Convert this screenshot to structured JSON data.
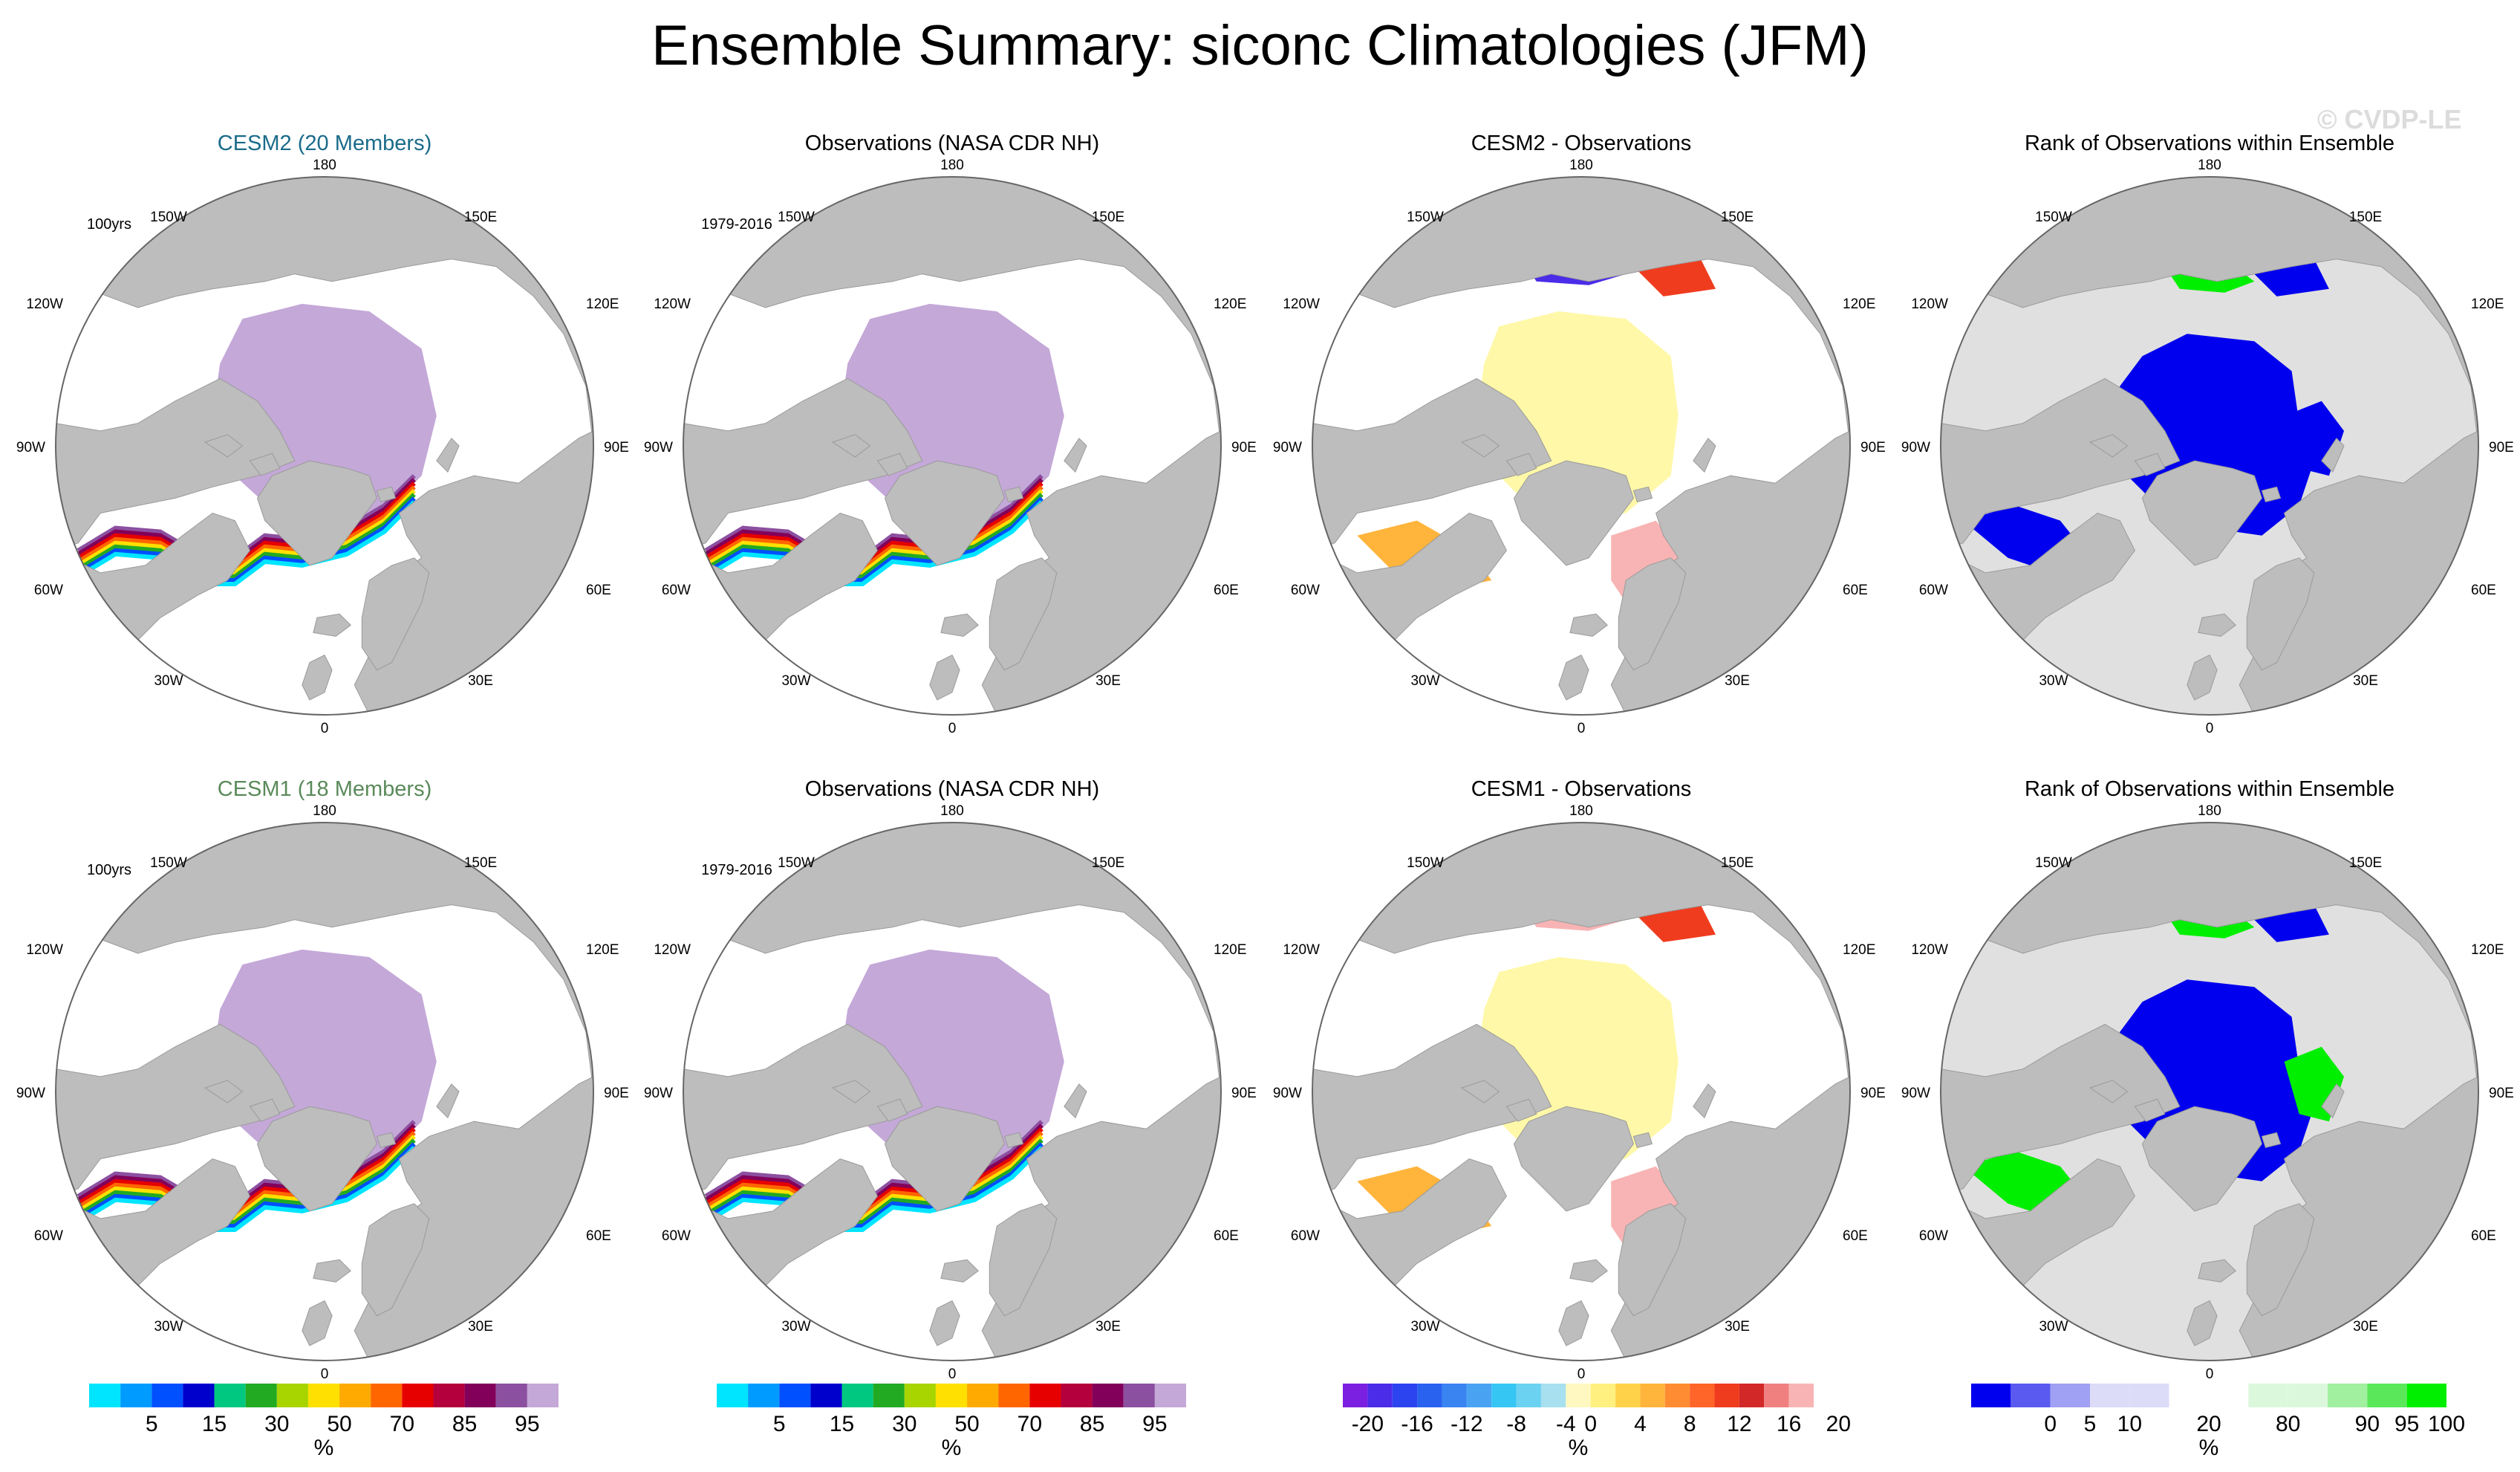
{
  "title": "Ensemble Summary: siconc Climatologies (JFM)",
  "watermark": "© CVDP-LE",
  "colors": {
    "land": "#bdbdbd",
    "pole_ice": "#c4a8d8",
    "pack_ice": "#8a4fa8",
    "diff_ice_bias": "#fff8a8",
    "rank_low": "#0000ee",
    "rank_high": "#00ee00",
    "rank_bg": "#e0e0e0"
  },
  "map_labels": {
    "lon_top": "180",
    "lon_bottom": "0",
    "lon_150w": "150W",
    "lon_150e": "150E",
    "lon_120w": "120W",
    "lon_120e": "120E",
    "lon_90w": "90W",
    "lon_90e": "90E",
    "lon_60w": "60W",
    "lon_60e": "60E",
    "lon_30w": "30W",
    "lon_30e": "30E"
  },
  "panels": [
    {
      "title": "CESM2 (20 Members)",
      "title_color": "#1a6b8a",
      "subtitle": "100yrs",
      "kind": "ensemble"
    },
    {
      "title": "Observations (NASA CDR NH)",
      "title_color": "#000000",
      "subtitle": "1979-2016",
      "kind": "obs"
    },
    {
      "title": "CESM2 - Observations",
      "title_color": "#000000",
      "subtitle": "",
      "kind": "diff"
    },
    {
      "title": "Rank of Observations within Ensemble",
      "title_color": "#000000",
      "subtitle": "",
      "kind": "rank"
    },
    {
      "title": "CESM1 (18 Members)",
      "title_color": "#5a8a5a",
      "subtitle": "100yrs",
      "kind": "ensemble"
    },
    {
      "title": "Observations (NASA CDR NH)",
      "title_color": "#000000",
      "subtitle": "1979-2016",
      "kind": "obs"
    },
    {
      "title": "CESM1 - Observations",
      "title_color": "#000000",
      "subtitle": "",
      "kind": "diff"
    },
    {
      "title": "Rank of Observations within Ensemble",
      "title_color": "#000000",
      "subtitle": "",
      "kind": "rank"
    }
  ],
  "colorbars": [
    {
      "unit": "%",
      "colors": [
        "#00e5ff",
        "#009bff",
        "#0050ff",
        "#0000cc",
        "#00c880",
        "#22aa22",
        "#a8d400",
        "#ffe000",
        "#ffaa00",
        "#ff6600",
        "#e60000",
        "#b4003c",
        "#82005a",
        "#8c50a0",
        "#c4a8d8"
      ],
      "tick_labels": [
        "5",
        "15",
        "30",
        "50",
        "70",
        "85",
        "95"
      ],
      "tick_boundaries": [
        1,
        3,
        5,
        7,
        9,
        11,
        13
      ]
    },
    {
      "unit": "%",
      "colors": [
        "#00e5ff",
        "#009bff",
        "#0050ff",
        "#0000cc",
        "#00c880",
        "#22aa22",
        "#a8d400",
        "#ffe000",
        "#ffaa00",
        "#ff6600",
        "#e60000",
        "#b4003c",
        "#82005a",
        "#8c50a0",
        "#c4a8d8"
      ],
      "tick_labels": [
        "5",
        "15",
        "30",
        "50",
        "70",
        "85",
        "95"
      ],
      "tick_boundaries": [
        1,
        3,
        5,
        7,
        9,
        11,
        13
      ]
    },
    {
      "unit": "%",
      "colors": [
        "#7b1fe0",
        "#4b2ce8",
        "#2c44f0",
        "#2a62f0",
        "#3a84f2",
        "#4aa2f2",
        "#36c6f4",
        "#6cd2f2",
        "#a8e0f0",
        "#fff8c0",
        "#fff080",
        "#ffd24a",
        "#ffb43c",
        "#ff8c32",
        "#ff6428",
        "#f03c1e",
        "#d22828",
        "#f08080",
        "#f8b4b4"
      ],
      "tick_labels": [
        "-20",
        "-16",
        "-12",
        "-8",
        "-4",
        "0",
        "4",
        "8",
        "12",
        "16",
        "20"
      ],
      "tick_boundaries": [
        0,
        2,
        4,
        6,
        8,
        9,
        11,
        13,
        15,
        17,
        19
      ]
    },
    {
      "unit": "%",
      "colors": [
        "#0000ee",
        "#5a5af0",
        "#a0a0f4",
        "#dcdcf8",
        "#dcdcf8",
        "#ffffff",
        "#ffffff",
        "#dcf8dc",
        "#dcf8dc",
        "#a0f0a0",
        "#5ae85a",
        "#00ee00"
      ],
      "tick_labels": [
        "0",
        "5",
        "10",
        "20",
        "80",
        "90",
        "95",
        "100"
      ],
      "tick_boundaries": [
        1,
        2,
        3,
        5,
        7,
        9,
        10,
        11
      ]
    }
  ]
}
